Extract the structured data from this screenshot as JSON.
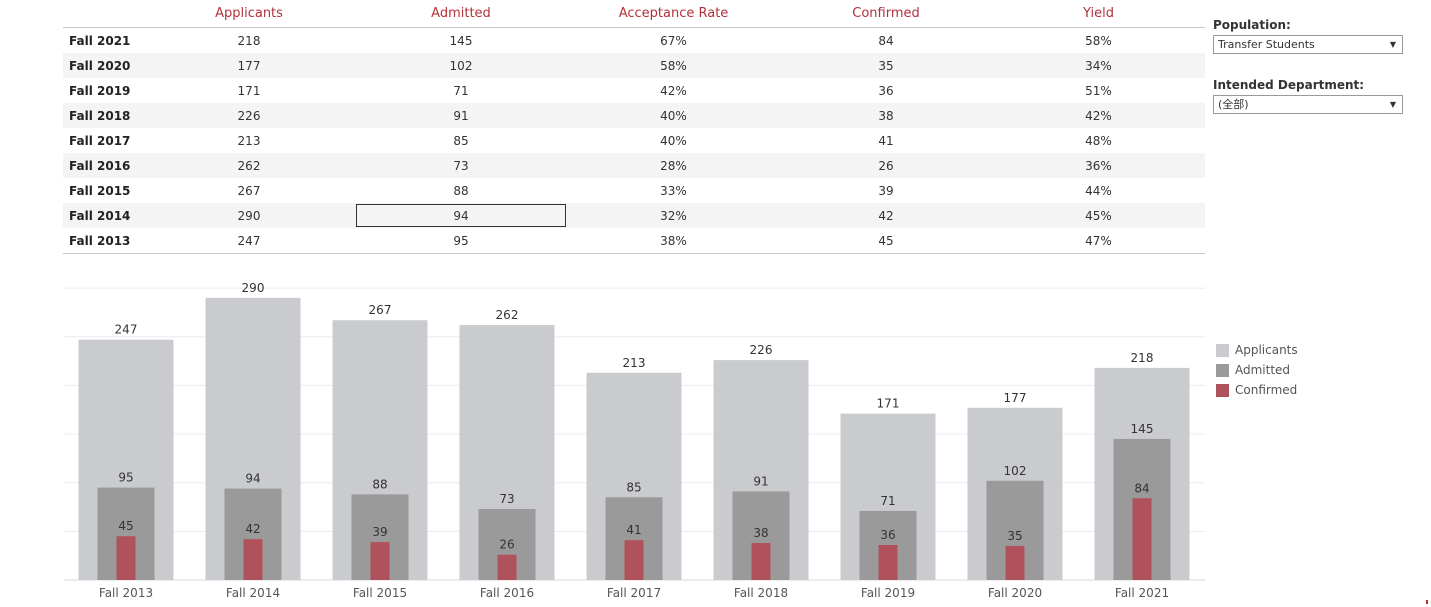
{
  "table": {
    "columns": [
      "Applicants",
      "Admitted",
      "Acceptance Rate",
      "Confirmed",
      "Yield"
    ],
    "rows": [
      {
        "term": "Fall 2021",
        "values": [
          "218",
          "145",
          "67%",
          "84",
          "58%"
        ]
      },
      {
        "term": "Fall 2020",
        "values": [
          "177",
          "102",
          "58%",
          "35",
          "34%"
        ]
      },
      {
        "term": "Fall 2019",
        "values": [
          "171",
          "71",
          "42%",
          "36",
          "51%"
        ]
      },
      {
        "term": "Fall 2018",
        "values": [
          "226",
          "91",
          "40%",
          "38",
          "42%"
        ]
      },
      {
        "term": "Fall 2017",
        "values": [
          "213",
          "85",
          "40%",
          "41",
          "48%"
        ]
      },
      {
        "term": "Fall 2016",
        "values": [
          "262",
          "73",
          "28%",
          "26",
          "36%"
        ]
      },
      {
        "term": "Fall 2015",
        "values": [
          "267",
          "88",
          "33%",
          "39",
          "44%"
        ]
      },
      {
        "term": "Fall 2014",
        "values": [
          "290",
          "94",
          "32%",
          "42",
          "45%"
        ]
      },
      {
        "term": "Fall 2013",
        "values": [
          "247",
          "95",
          "38%",
          "45",
          "47%"
        ]
      }
    ]
  },
  "filters": {
    "population_label": "Population:",
    "population_value": "Transfer Students",
    "department_label": "Intended Department:",
    "department_value": "(全部)"
  },
  "legend": {
    "applicants": "Applicants",
    "admitted": "Admitted",
    "confirmed": "Confirmed"
  },
  "colors": {
    "applicants": "#c9cbcf",
    "admitted": "#9a9a9a",
    "confirmed": "#b0525b",
    "header_text": "#b2313b"
  },
  "chart_data": {
    "type": "bar",
    "categories": [
      "Fall 2013",
      "Fall 2014",
      "Fall 2015",
      "Fall 2016",
      "Fall 2017",
      "Fall 2018",
      "Fall 2019",
      "Fall 2020",
      "Fall 2021"
    ],
    "series": [
      {
        "name": "Applicants",
        "values": [
          247,
          290,
          267,
          262,
          213,
          226,
          171,
          177,
          218
        ]
      },
      {
        "name": "Admitted",
        "values": [
          95,
          94,
          88,
          73,
          85,
          91,
          71,
          102,
          145
        ]
      },
      {
        "name": "Confirmed",
        "values": [
          45,
          42,
          39,
          26,
          41,
          38,
          36,
          35,
          84
        ]
      }
    ],
    "ylim": [
      0,
      300
    ],
    "grid": true,
    "legend": "right"
  }
}
